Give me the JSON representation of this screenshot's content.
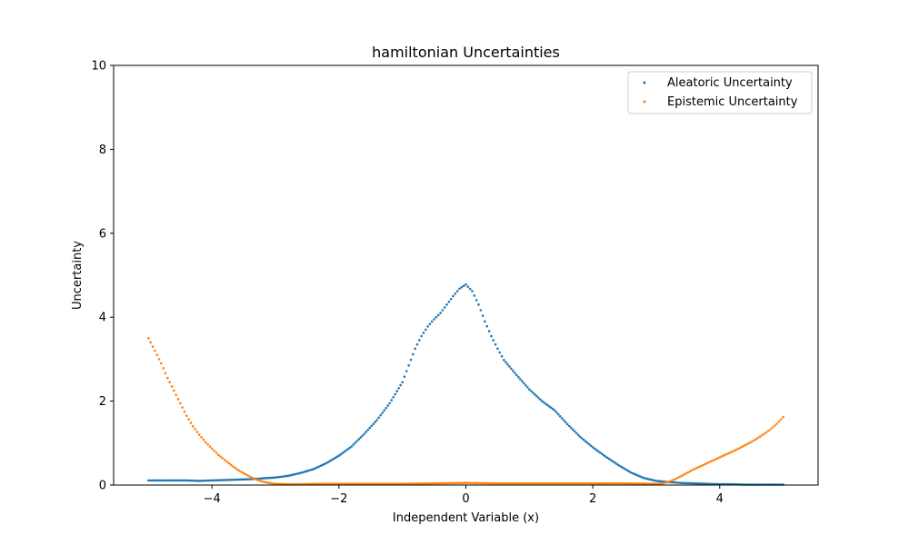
{
  "chart_data": {
    "type": "scatter",
    "title": "hamiltonian Uncertainties",
    "xlabel": "Independent Variable (x)",
    "ylabel": "Uncertainty",
    "xlim": [
      -5.55,
      5.55
    ],
    "ylim": [
      0,
      10
    ],
    "xticks": [
      -4,
      -2,
      0,
      2,
      4
    ],
    "yticks": [
      0,
      2,
      4,
      6,
      8,
      10
    ],
    "xtick_labels": [
      "−4",
      "−2",
      "0",
      "2",
      "4"
    ],
    "ytick_labels": [
      "0",
      "2",
      "4",
      "6",
      "8",
      "10"
    ],
    "legend_position": "top-right",
    "grid": false,
    "series": [
      {
        "name": "Aleatoric Uncertainty",
        "color": "#1f77b4",
        "x": [
          -5.0,
          -4.8,
          -4.6,
          -4.4,
          -4.2,
          -4.0,
          -3.8,
          -3.6,
          -3.4,
          -3.2,
          -3.0,
          -2.8,
          -2.6,
          -2.4,
          -2.2,
          -2.0,
          -1.8,
          -1.6,
          -1.4,
          -1.2,
          -1.0,
          -0.9,
          -0.8,
          -0.7,
          -0.6,
          -0.5,
          -0.4,
          -0.3,
          -0.2,
          -0.1,
          0.0,
          0.1,
          0.2,
          0.3,
          0.4,
          0.5,
          0.6,
          0.8,
          1.0,
          1.2,
          1.4,
          1.6,
          1.8,
          2.0,
          2.2,
          2.4,
          2.6,
          2.8,
          3.0,
          3.2,
          3.4,
          3.6,
          3.8,
          4.0,
          4.2,
          4.4,
          4.6,
          4.8,
          5.0
        ],
        "y": [
          0.11,
          0.11,
          0.11,
          0.11,
          0.1,
          0.11,
          0.12,
          0.13,
          0.14,
          0.16,
          0.18,
          0.22,
          0.29,
          0.38,
          0.52,
          0.7,
          0.92,
          1.22,
          1.55,
          1.95,
          2.45,
          2.85,
          3.25,
          3.55,
          3.78,
          3.95,
          4.1,
          4.3,
          4.5,
          4.68,
          4.78,
          4.62,
          4.3,
          3.9,
          3.55,
          3.25,
          2.98,
          2.62,
          2.28,
          2.0,
          1.78,
          1.45,
          1.15,
          0.9,
          0.68,
          0.48,
          0.3,
          0.17,
          0.1,
          0.07,
          0.05,
          0.04,
          0.03,
          0.02,
          0.02,
          0.01,
          0.01,
          0.01,
          0.01
        ]
      },
      {
        "name": "Epistemic Uncertainty",
        "color": "#ff7f0e",
        "x": [
          -5.0,
          -4.9,
          -4.8,
          -4.7,
          -4.6,
          -4.5,
          -4.4,
          -4.3,
          -4.2,
          -4.1,
          -4.0,
          -3.9,
          -3.8,
          -3.7,
          -3.6,
          -3.5,
          -3.4,
          -3.3,
          -3.2,
          -3.1,
          -3.0,
          -2.8,
          -2.6,
          -2.4,
          -2.0,
          -1.5,
          -1.0,
          -0.5,
          0.0,
          0.5,
          1.0,
          1.5,
          2.0,
          2.5,
          3.0,
          3.1,
          3.2,
          3.3,
          3.4,
          3.5,
          3.6,
          3.7,
          3.8,
          3.9,
          4.0,
          4.1,
          4.2,
          4.3,
          4.4,
          4.5,
          4.6,
          4.7,
          4.8,
          4.9,
          5.0
        ],
        "y": [
          3.5,
          3.2,
          2.9,
          2.55,
          2.25,
          1.95,
          1.65,
          1.4,
          1.2,
          1.02,
          0.87,
          0.72,
          0.6,
          0.48,
          0.37,
          0.28,
          0.2,
          0.13,
          0.08,
          0.05,
          0.03,
          0.02,
          0.02,
          0.03,
          0.03,
          0.03,
          0.03,
          0.04,
          0.05,
          0.04,
          0.04,
          0.04,
          0.04,
          0.04,
          0.03,
          0.04,
          0.08,
          0.14,
          0.22,
          0.3,
          0.38,
          0.45,
          0.52,
          0.59,
          0.66,
          0.73,
          0.8,
          0.87,
          0.95,
          1.03,
          1.12,
          1.22,
          1.33,
          1.46,
          1.62
        ]
      }
    ]
  }
}
